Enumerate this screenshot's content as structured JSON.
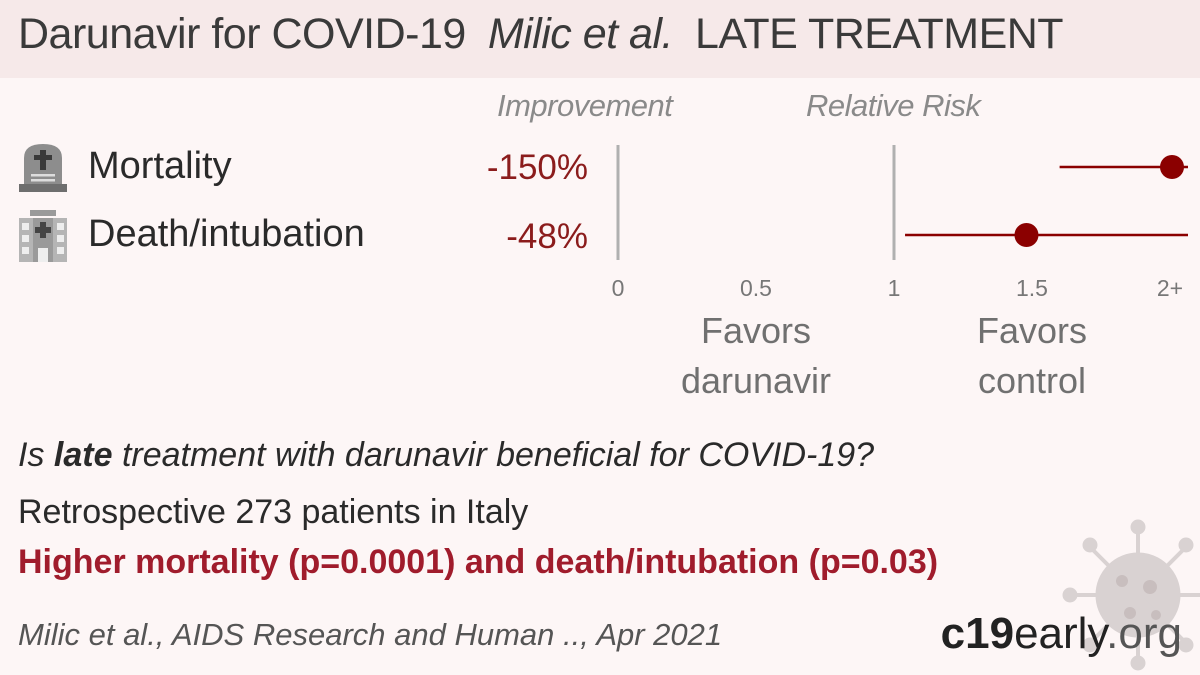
{
  "header": {
    "title_drug": "Darunavir for COVID-19",
    "title_study": "Milic et al.",
    "title_stage": "LATE TREATMENT"
  },
  "columns": {
    "improvement": "Improvement",
    "relative_risk": "Relative Risk"
  },
  "icons": {
    "mortality": "tombstone-icon",
    "death_intubation": "hospital-icon",
    "background": "virus-icon"
  },
  "colors": {
    "point": "#8b0000",
    "negative_text": "#8b1c1c",
    "result_text": "#a01c2c"
  },
  "chart_data": {
    "type": "forest",
    "x_scale": "relative risk",
    "xlim": [
      0,
      2
    ],
    "x_ticks": [
      {
        "value": 0,
        "label": "0"
      },
      {
        "value": 0.5,
        "label": "0.5"
      },
      {
        "value": 1,
        "label": "1"
      },
      {
        "value": 1.5,
        "label": "1.5"
      },
      {
        "value": 2,
        "label": "2+"
      }
    ],
    "outcomes": [
      {
        "name": "Mortality",
        "improvement": "-150%",
        "rr": 2.5,
        "ci_low": 1.6,
        "ci_high": 3.9
      },
      {
        "name": "Death/intubation",
        "improvement": "-48%",
        "rr": 1.48,
        "ci_low": 1.04,
        "ci_high": 2.1
      }
    ],
    "favors_left": "Favors\ndarunavir",
    "favors_right": "Favors\ncontrol"
  },
  "summary": {
    "question_prefix": "Is ",
    "question_bold": "late",
    "question_suffix": " treatment with darunavir beneficial for COVID-19?",
    "study": "Retrospective 273 patients in Italy",
    "result": "Higher mortality (p=0.0001) and death/intubation (p=0.03)",
    "citation": "Milic et al., AIDS Research and Human .., Apr 2021"
  },
  "brand": {
    "part1": "c19",
    "part2": "early",
    "part3": ".org"
  }
}
